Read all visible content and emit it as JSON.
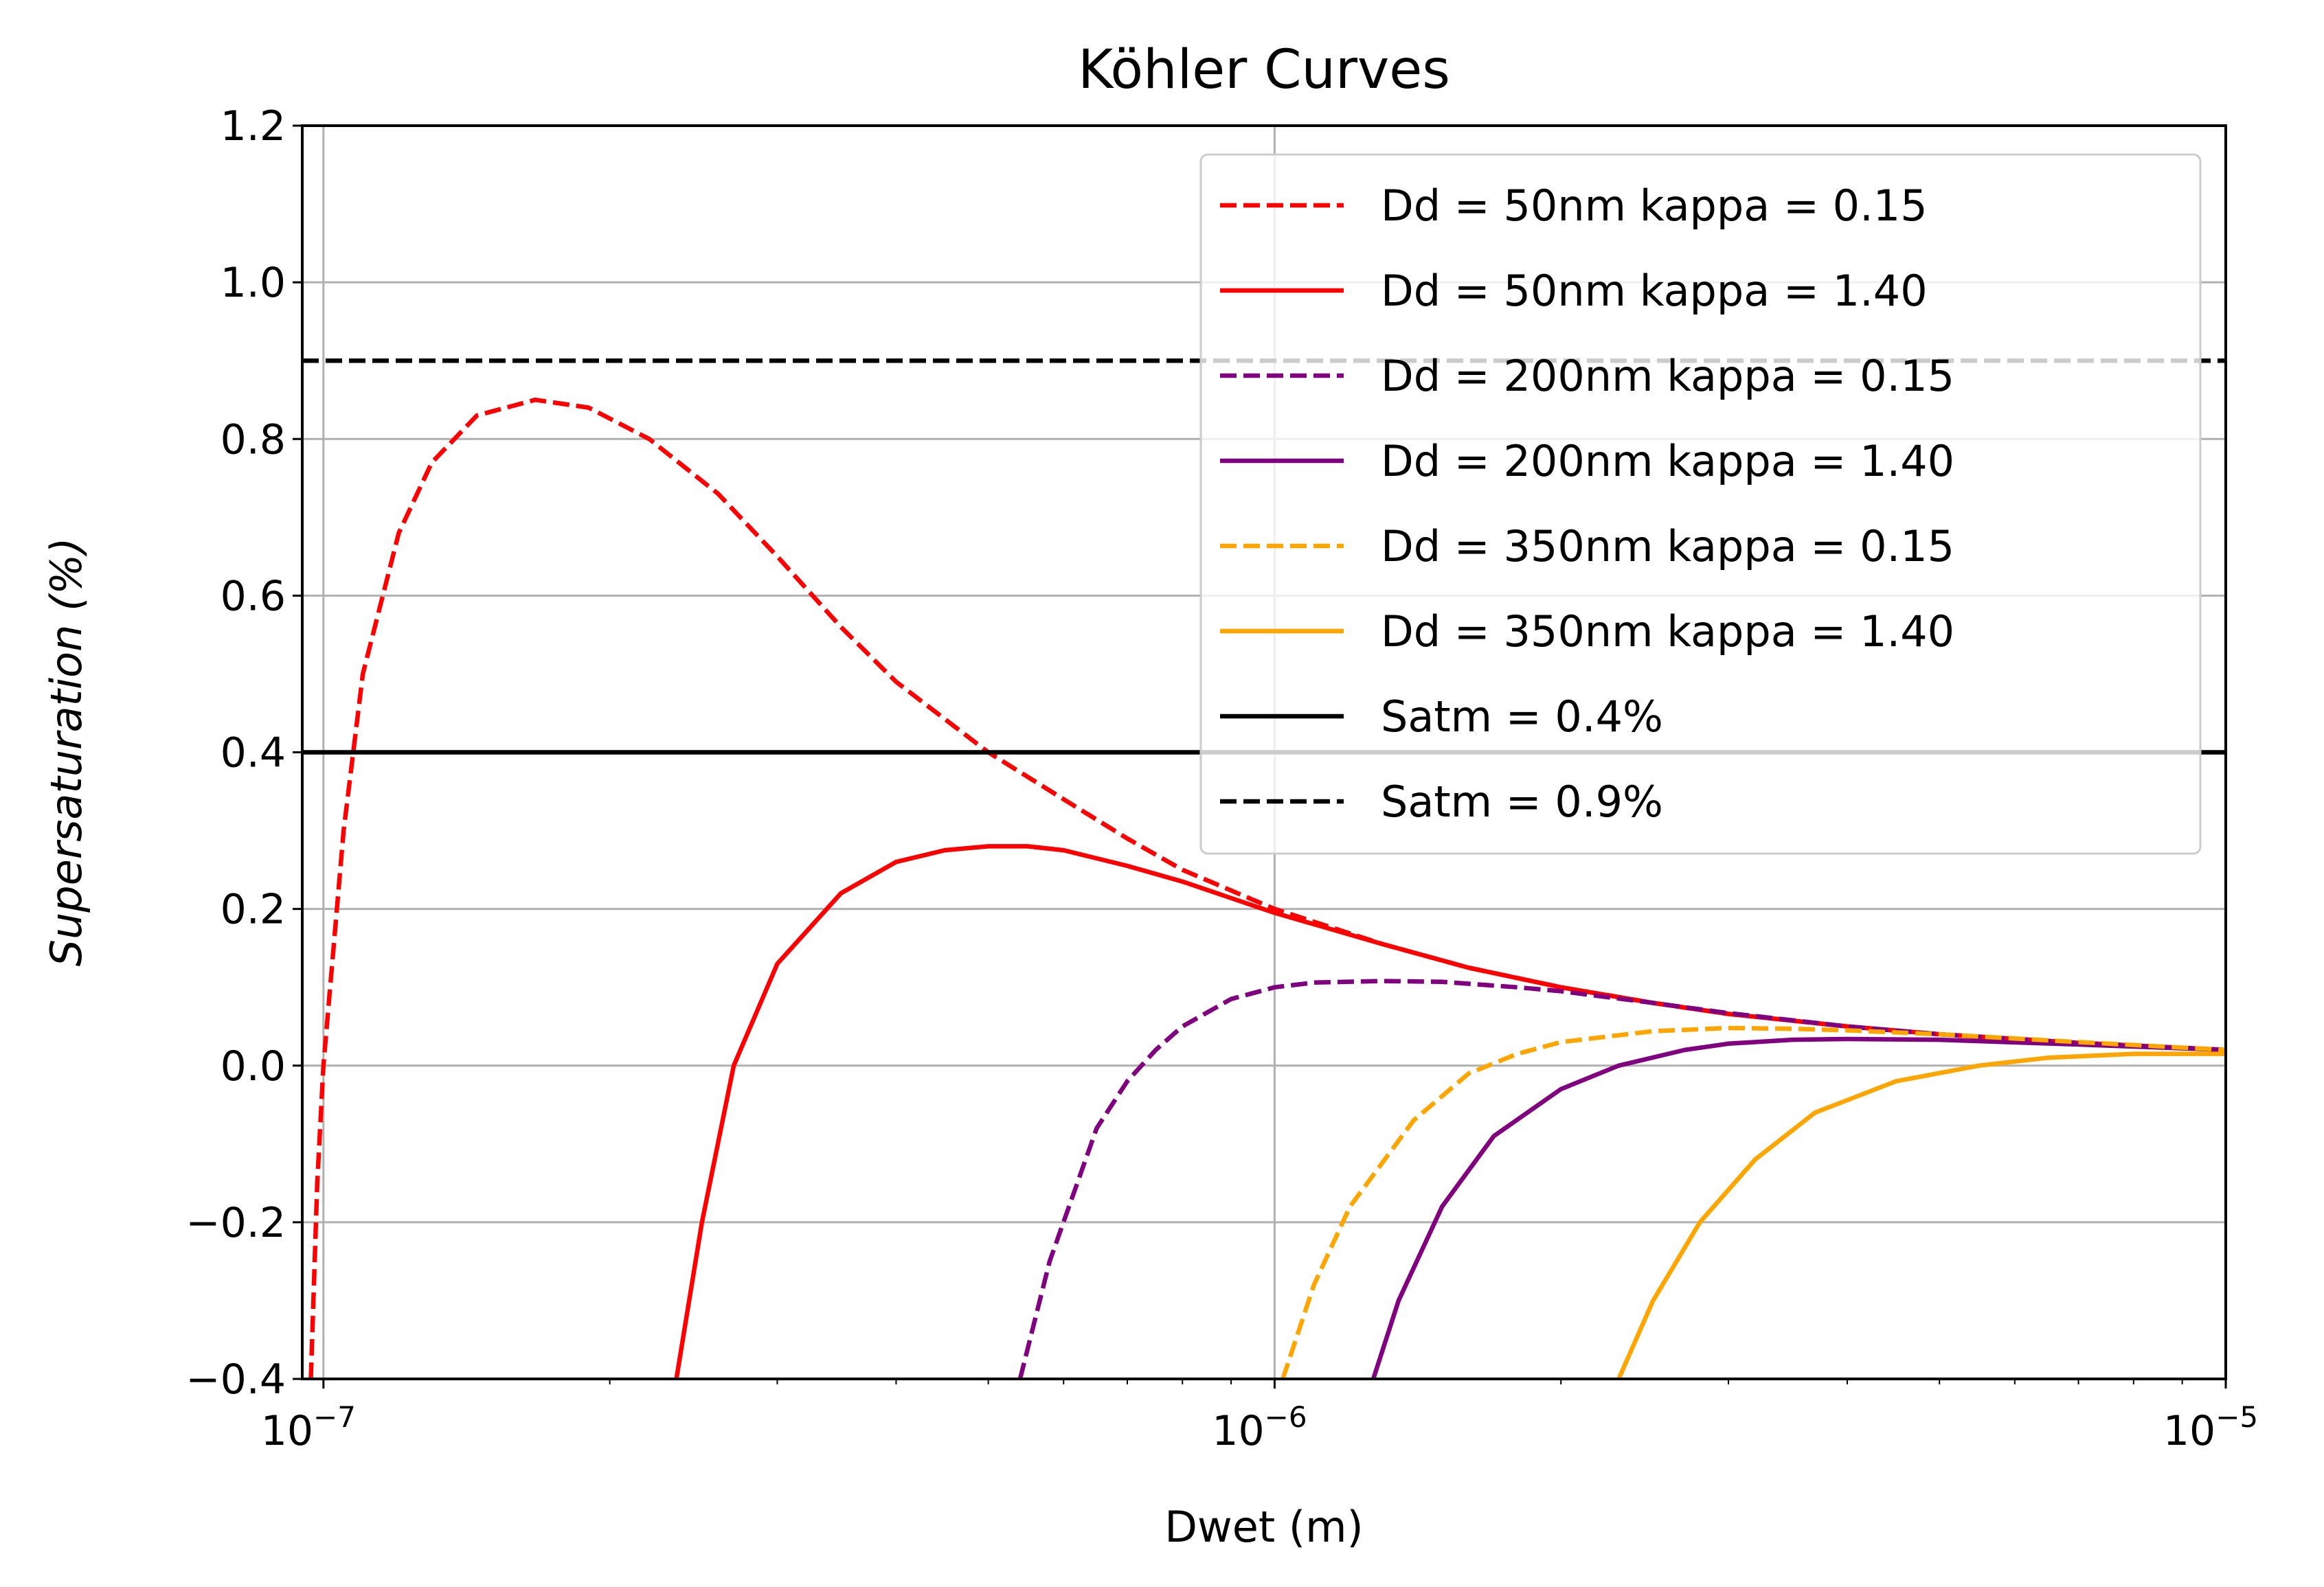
{
  "chart_data": {
    "type": "line",
    "title": "Köhler Curves",
    "xlabel": "Dwet (m)",
    "ylabel": "Supersaturation (%)",
    "xscale": "log",
    "xlim": [
      9.5e-08,
      1e-05
    ],
    "ylim": [
      -0.4,
      1.2
    ],
    "grid": true,
    "legend_position": "top-right",
    "xticks": [
      {
        "value": 1e-07,
        "base": "10",
        "exp": "−7"
      },
      {
        "value": 1e-06,
        "base": "10",
        "exp": "−6"
      },
      {
        "value": 1e-05,
        "base": "10",
        "exp": "−5"
      }
    ],
    "yticks": [
      {
        "value": 1.2,
        "label": "1.2"
      },
      {
        "value": 1.0,
        "label": "1.0"
      },
      {
        "value": 0.8,
        "label": "0.8"
      },
      {
        "value": 0.6,
        "label": "0.6"
      },
      {
        "value": 0.4,
        "label": "0.4"
      },
      {
        "value": 0.2,
        "label": "0.2"
      },
      {
        "value": 0.0,
        "label": "0.0"
      },
      {
        "value": -0.2,
        "label": "−0.2"
      },
      {
        "value": -0.4,
        "label": "−0.4"
      }
    ],
    "series": [
      {
        "name": "Dd = 50nm  kappa = 0.15",
        "color": "#ff0000",
        "dash": true,
        "points": [
          [
            9.7e-08,
            -0.4
          ],
          [
            9.85e-08,
            -0.15
          ],
          [
            1e-07,
            0.0
          ],
          [
            1.05e-07,
            0.3
          ],
          [
            1.1e-07,
            0.5
          ],
          [
            1.2e-07,
            0.68
          ],
          [
            1.3e-07,
            0.77
          ],
          [
            1.45e-07,
            0.83
          ],
          [
            1.67e-07,
            0.85
          ],
          [
            1.9e-07,
            0.84
          ],
          [
            2.2e-07,
            0.8
          ],
          [
            2.6e-07,
            0.73
          ],
          [
            3e-07,
            0.65
          ],
          [
            3.5e-07,
            0.56
          ],
          [
            4e-07,
            0.49
          ],
          [
            5e-07,
            0.4
          ],
          [
            6e-07,
            0.34
          ],
          [
            7e-07,
            0.29
          ],
          [
            8e-07,
            0.25
          ],
          [
            1e-06,
            0.2
          ],
          [
            1.3e-06,
            0.155
          ],
          [
            1.6e-06,
            0.125
          ],
          [
            2e-06,
            0.1
          ],
          [
            2.5e-06,
            0.08
          ],
          [
            3e-06,
            0.066
          ],
          [
            4e-06,
            0.05
          ],
          [
            5e-06,
            0.04
          ],
          [
            7e-06,
            0.029
          ],
          [
            1e-05,
            0.02
          ]
        ]
      },
      {
        "name": "Dd = 50nm  kappa = 1.40",
        "color": "#ff0000",
        "dash": false,
        "points": [
          [
            2.35e-07,
            -0.4
          ],
          [
            2.5e-07,
            -0.2
          ],
          [
            2.7e-07,
            0.0
          ],
          [
            3e-07,
            0.13
          ],
          [
            3.5e-07,
            0.22
          ],
          [
            4e-07,
            0.26
          ],
          [
            4.5e-07,
            0.275
          ],
          [
            5e-07,
            0.28
          ],
          [
            5.5e-07,
            0.28
          ],
          [
            6e-07,
            0.275
          ],
          [
            7e-07,
            0.255
          ],
          [
            8e-07,
            0.235
          ],
          [
            1e-06,
            0.195
          ],
          [
            1.3e-06,
            0.155
          ],
          [
            1.6e-06,
            0.125
          ],
          [
            2e-06,
            0.1
          ],
          [
            2.5e-06,
            0.08
          ],
          [
            3e-06,
            0.066
          ],
          [
            4e-06,
            0.05
          ],
          [
            5e-06,
            0.04
          ],
          [
            7e-06,
            0.029
          ],
          [
            1e-05,
            0.02
          ]
        ]
      },
      {
        "name": "Dd = 200nm  kappa = 0.15",
        "color": "#800080",
        "dash": true,
        "points": [
          [
            5.4e-07,
            -0.4
          ],
          [
            5.8e-07,
            -0.25
          ],
          [
            6.5e-07,
            -0.08
          ],
          [
            7e-07,
            -0.02
          ],
          [
            7.5e-07,
            0.02
          ],
          [
            8e-07,
            0.05
          ],
          [
            9e-07,
            0.085
          ],
          [
            1e-06,
            0.1
          ],
          [
            1.1e-06,
            0.106
          ],
          [
            1.3e-06,
            0.108
          ],
          [
            1.5e-06,
            0.107
          ],
          [
            1.8e-06,
            0.1
          ],
          [
            2e-06,
            0.095
          ],
          [
            2.5e-06,
            0.08
          ],
          [
            3e-06,
            0.067
          ],
          [
            4e-06,
            0.05
          ],
          [
            5e-06,
            0.04
          ],
          [
            7e-06,
            0.029
          ],
          [
            1e-05,
            0.02
          ]
        ]
      },
      {
        "name": "Dd = 200nm  kappa = 1.40",
        "color": "#800080",
        "dash": false,
        "points": [
          [
            1.27e-06,
            -0.4
          ],
          [
            1.35e-06,
            -0.3
          ],
          [
            1.5e-06,
            -0.18
          ],
          [
            1.7e-06,
            -0.09
          ],
          [
            2e-06,
            -0.03
          ],
          [
            2.3e-06,
            0.0
          ],
          [
            2.7e-06,
            0.02
          ],
          [
            3e-06,
            0.028
          ],
          [
            3.5e-06,
            0.033
          ],
          [
            4e-06,
            0.034
          ],
          [
            5e-06,
            0.033
          ],
          [
            7e-06,
            0.027
          ],
          [
            1e-05,
            0.02
          ]
        ]
      },
      {
        "name": "Dd = 350nm  kappa = 0.15",
        "color": "#ffa500",
        "dash": true,
        "points": [
          [
            1.02e-06,
            -0.4
          ],
          [
            1.1e-06,
            -0.28
          ],
          [
            1.2e-06,
            -0.18
          ],
          [
            1.4e-06,
            -0.07
          ],
          [
            1.6e-06,
            -0.01
          ],
          [
            1.8e-06,
            0.015
          ],
          [
            2e-06,
            0.03
          ],
          [
            2.5e-06,
            0.044
          ],
          [
            3e-06,
            0.048
          ],
          [
            3.5e-06,
            0.047
          ],
          [
            4e-06,
            0.045
          ],
          [
            5e-06,
            0.04
          ],
          [
            7e-06,
            0.03
          ],
          [
            1e-05,
            0.02
          ]
        ]
      },
      {
        "name": "Dd = 350nm  kappa = 1.40",
        "color": "#ffa500",
        "dash": false,
        "points": [
          [
            2.3e-06,
            -0.4
          ],
          [
            2.5e-06,
            -0.3
          ],
          [
            2.8e-06,
            -0.2
          ],
          [
            3.2e-06,
            -0.12
          ],
          [
            3.7e-06,
            -0.06
          ],
          [
            4.5e-06,
            -0.02
          ],
          [
            5.5e-06,
            0.0
          ],
          [
            6.5e-06,
            0.01
          ],
          [
            8e-06,
            0.015
          ],
          [
            1e-05,
            0.015
          ]
        ]
      },
      {
        "name": "Satm = 0.4%",
        "color": "#000000",
        "dash": false,
        "points": [
          [
            9.5e-08,
            0.4
          ],
          [
            1e-05,
            0.4
          ]
        ]
      },
      {
        "name": "Satm = 0.9%",
        "color": "#000000",
        "dash": true,
        "points": [
          [
            9.5e-08,
            0.9
          ],
          [
            1e-05,
            0.9
          ]
        ]
      }
    ]
  }
}
